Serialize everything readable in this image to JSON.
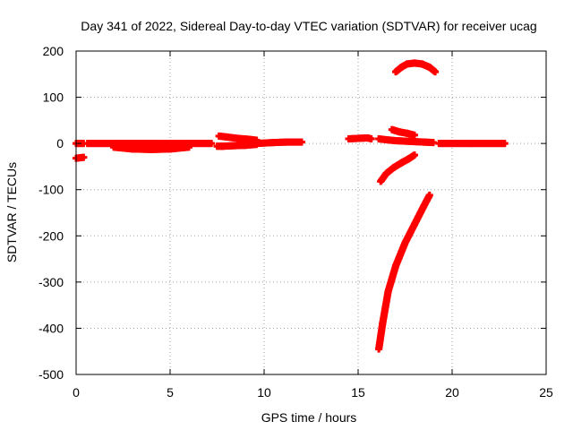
{
  "chart_data": {
    "type": "scatter",
    "title": "Day 341 of 2022, Sidereal Day-to-day VTEC variation (SDTVAR) for receiver ucag",
    "xlabel": "GPS time / hours",
    "ylabel": "SDTVAR / TECUs",
    "xlim": [
      0,
      25
    ],
    "ylim": [
      -500,
      200
    ],
    "xticks": [
      "0",
      "5",
      "10",
      "15",
      "20",
      "25"
    ],
    "yticks": [
      "200",
      "100",
      "0",
      "-100",
      "-200",
      "-300",
      "-400",
      "-500"
    ],
    "grid": true,
    "marker_color": "#ff0000",
    "series": [
      {
        "segments": [
          {
            "x": [
              0.0,
              0.4
            ],
            "y": [
              -32,
              -30
            ]
          },
          {
            "x": [
              0.0,
              0.4
            ],
            "y": [
              0,
              0
            ]
          },
          {
            "x": [
              0.6,
              7.2
            ],
            "y": [
              0,
              0
            ]
          },
          {
            "x": [
              2.0,
              3.0,
              4.0,
              5.0,
              6.0
            ],
            "y": [
              -8,
              -12,
              -13,
              -12,
              -8
            ]
          },
          {
            "x": [
              7.5,
              7.8,
              8.3,
              9.0,
              9.6
            ],
            "y": [
              -6,
              -6,
              -5,
              -4,
              -2
            ]
          },
          {
            "x": [
              7.6,
              8.0,
              8.6,
              9.2,
              9.6
            ],
            "y": [
              16,
              14,
              11,
              9,
              7
            ]
          },
          {
            "x": [
              9.6,
              10.5,
              11.2,
              12.0
            ],
            "y": [
              0,
              2,
              3,
              3
            ]
          },
          {
            "x": [
              14.5,
              15.0,
              15.5,
              15.7
            ],
            "y": [
              10,
              11,
              12,
              10
            ]
          },
          {
            "x": [
              16.1,
              16.5,
              17.0,
              17.5,
              18.0,
              18.5,
              19.0
            ],
            "y": [
              10,
              8,
              6,
              5,
              4,
              3,
              2
            ]
          },
          {
            "x": [
              16.8,
              17.2,
              17.6,
              18.0
            ],
            "y": [
              30,
              25,
              22,
              18
            ]
          },
          {
            "x": [
              16.2,
              16.5,
              16.9,
              17.3,
              17.7,
              18.0
            ],
            "y": [
              -82,
              -65,
              -52,
              -42,
              -33,
              -25
            ]
          },
          {
            "x": [
              16.1,
              16.3,
              16.6,
              17.0,
              17.5,
              18.0,
              18.5,
              18.8
            ],
            "y": [
              -445,
              -390,
              -320,
              -265,
              -215,
              -175,
              -135,
              -112
            ]
          },
          {
            "x": [
              17.0,
              17.3,
              17.6,
              18.0,
              18.4,
              18.8,
              19.1
            ],
            "y": [
              155,
              165,
              172,
              174,
              172,
              165,
              155
            ]
          },
          {
            "x": [
              19.3,
              21.0,
              22.8
            ],
            "y": [
              0,
              0,
              0
            ]
          }
        ]
      }
    ]
  }
}
